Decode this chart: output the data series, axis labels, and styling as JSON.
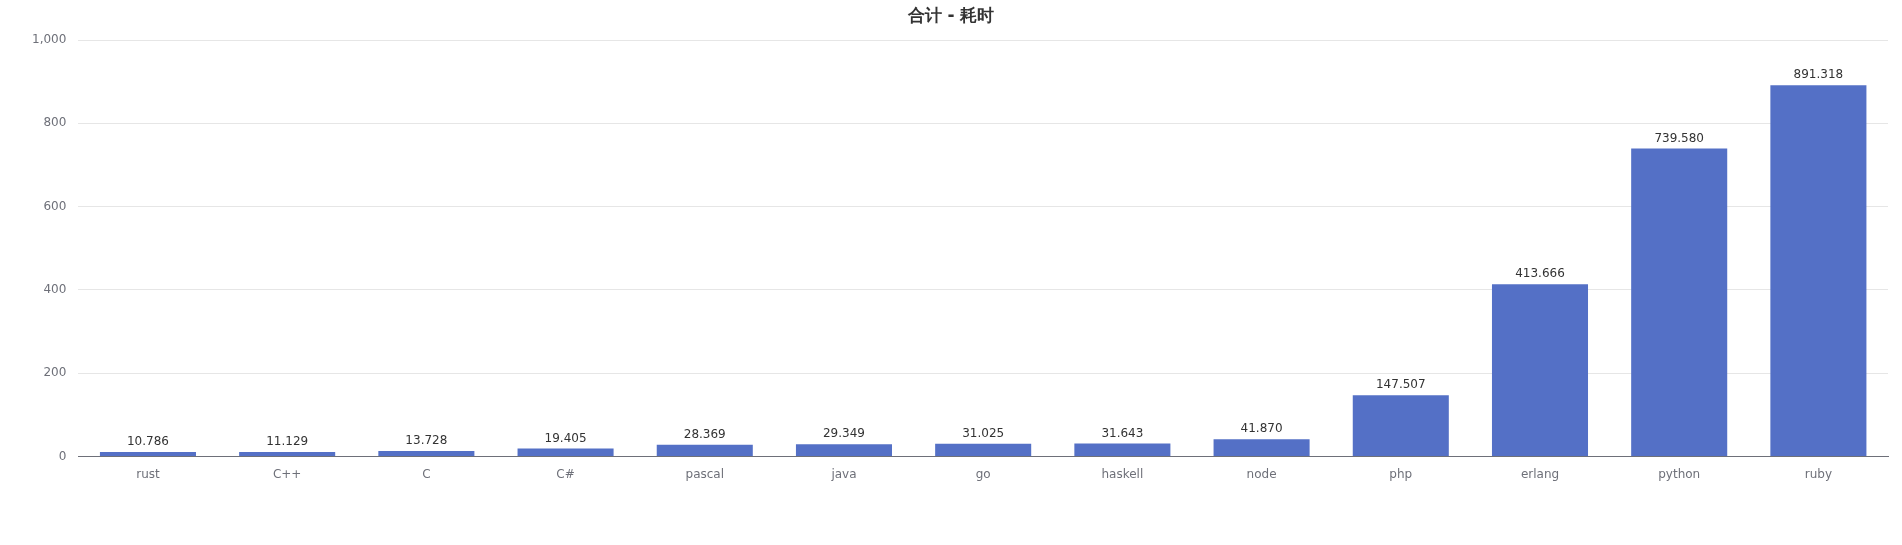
{
  "chart_data": {
    "type": "bar",
    "title": "合计 - 耗时",
    "categories": [
      "rust",
      "C++",
      "C",
      "C#",
      "pascal",
      "java",
      "go",
      "haskell",
      "node",
      "php",
      "erlang",
      "python",
      "ruby"
    ],
    "values": [
      10.786,
      11.129,
      13.728,
      19.405,
      28.369,
      29.349,
      31.025,
      31.643,
      41.87,
      147.507,
      413.666,
      739.58,
      891.318
    ],
    "value_labels": [
      "10.786",
      "11.129",
      "13.728",
      "19.405",
      "28.369",
      "29.349",
      "31.025",
      "31.643",
      "41.870",
      "147.507",
      "413.666",
      "739.580",
      "891.318"
    ],
    "color": "#5470c6",
    "ylim": [
      0,
      1000
    ],
    "yticks": [
      0,
      200,
      400,
      600,
      800,
      {
        "value": 1000,
        "label": "1,000"
      }
    ],
    "grid": "y",
    "legend": false
  }
}
